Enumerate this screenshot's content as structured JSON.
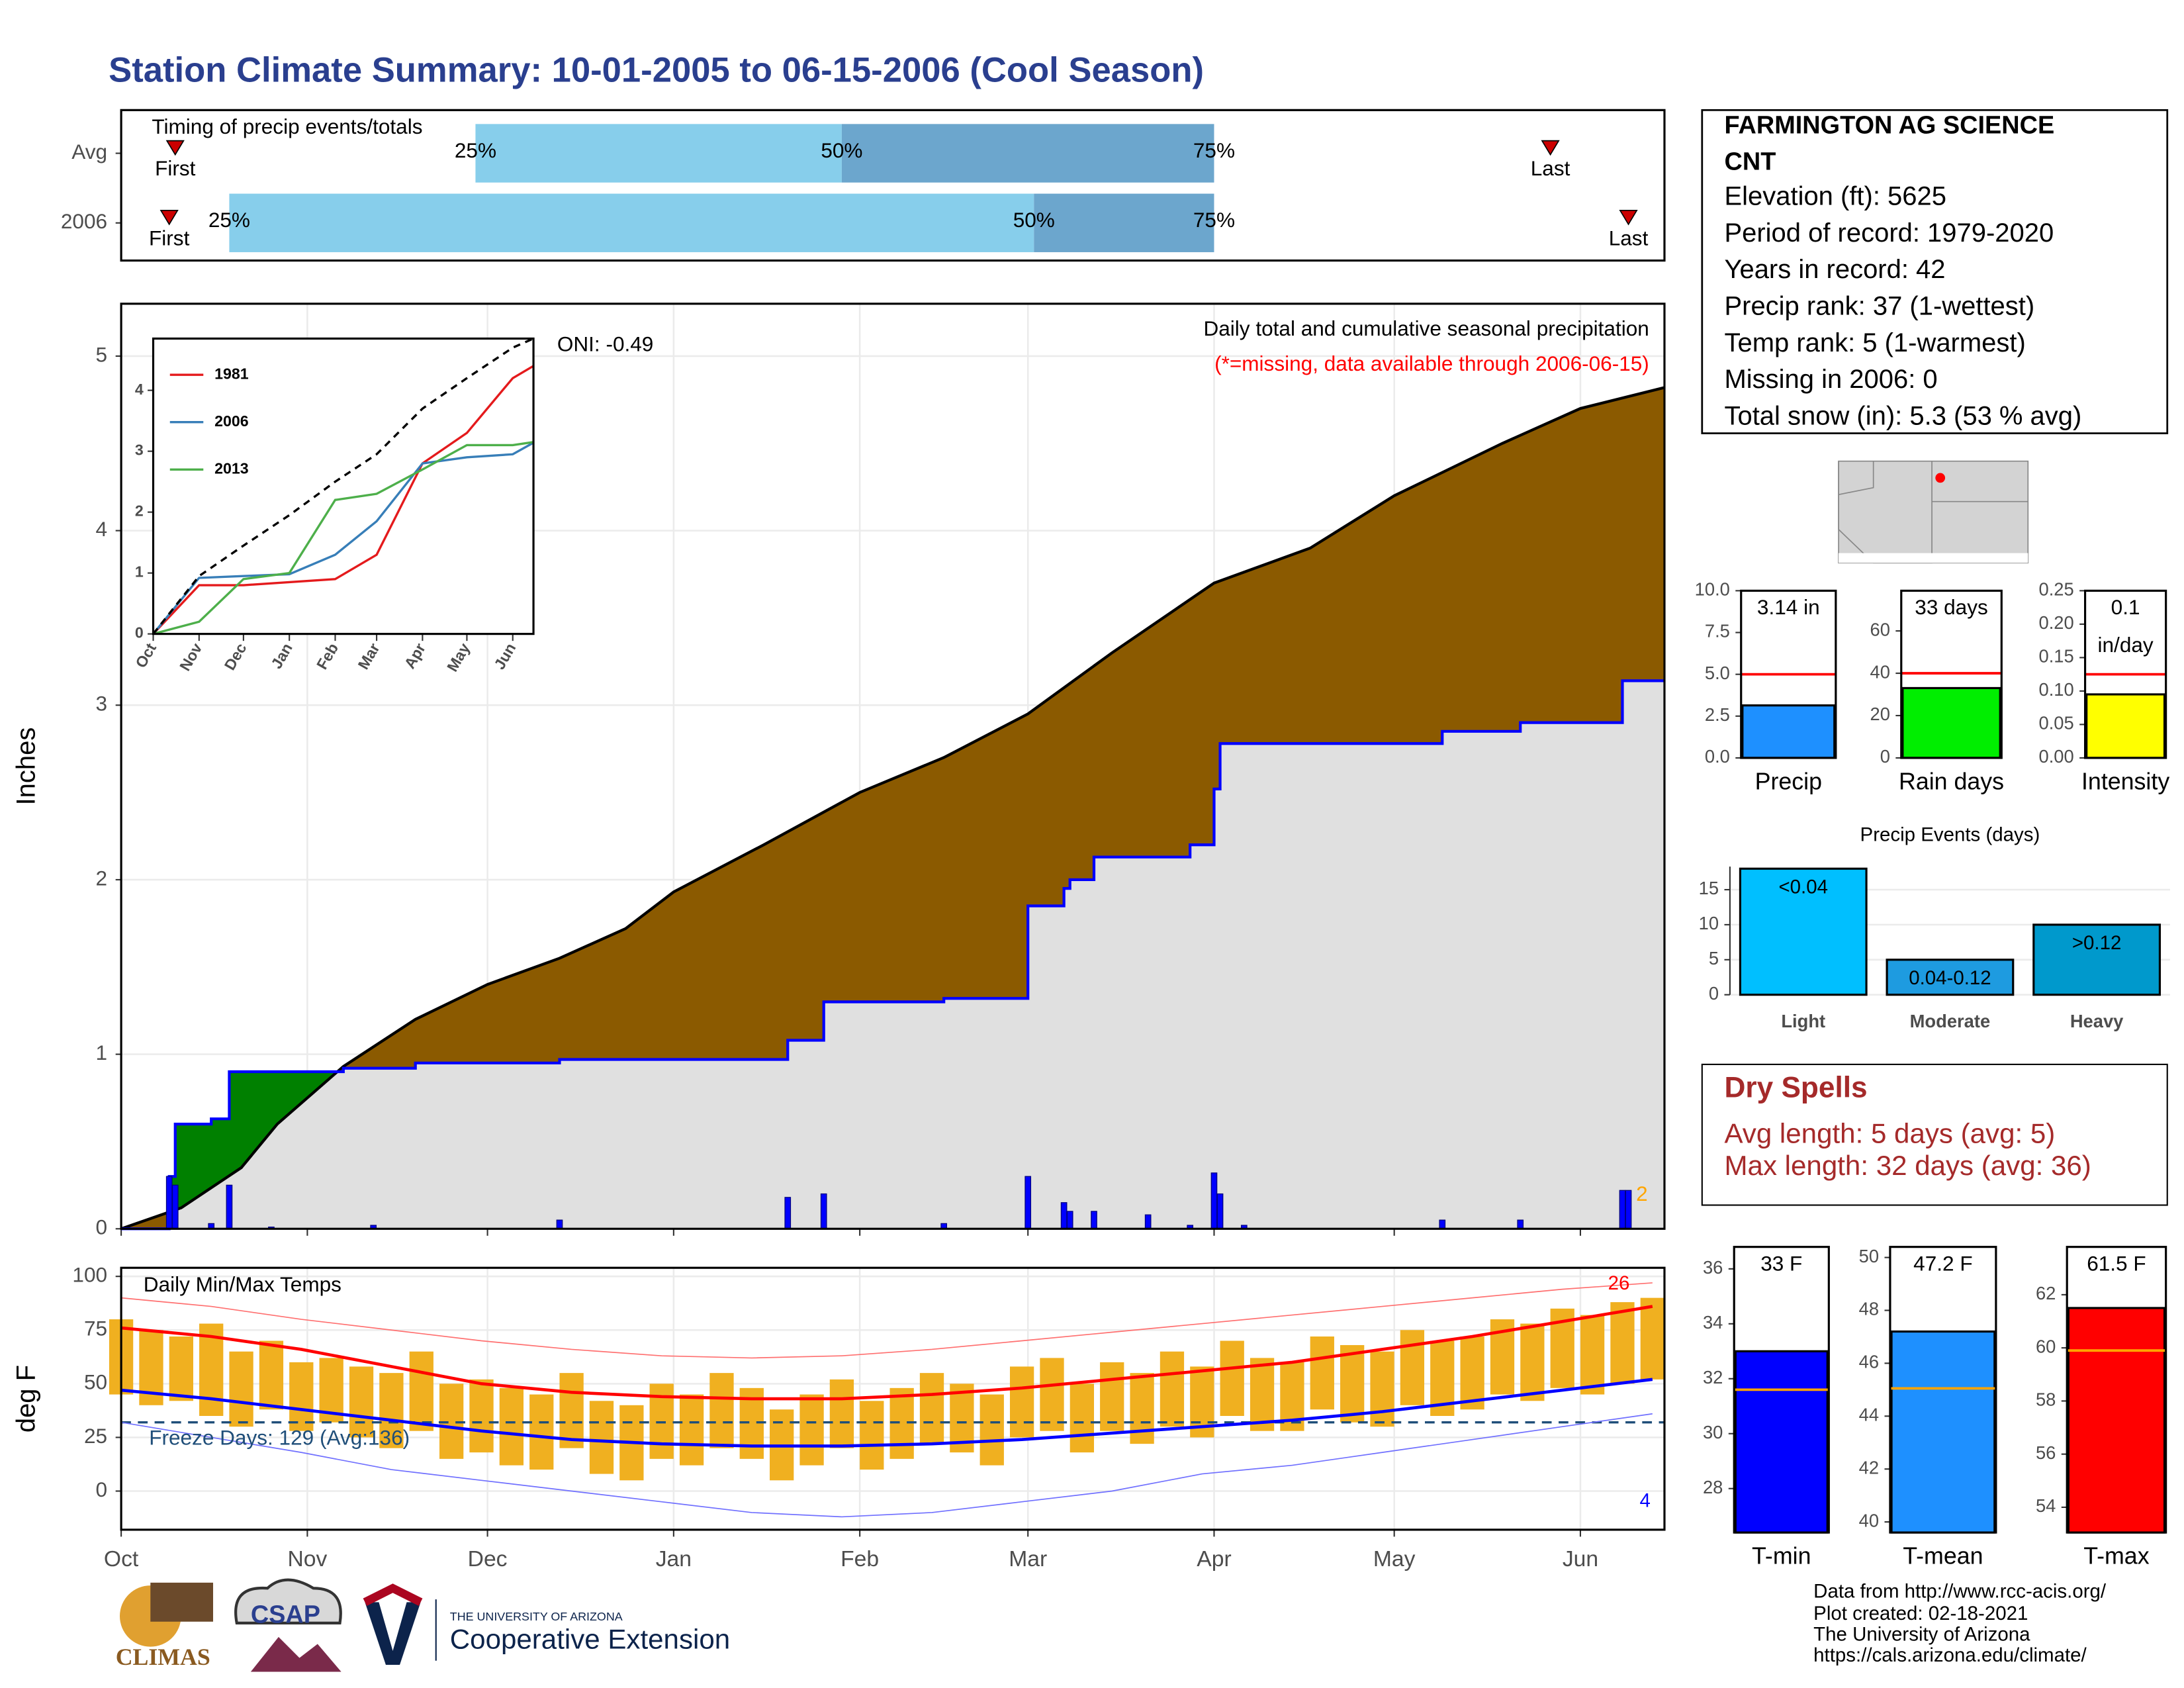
{
  "title": "Station Climate Summary: 10-01-2005 to 06-15-2006 (Cool Season)",
  "station": {
    "name_lines": [
      "FARMINGTON AG SCIENCE",
      "CNT"
    ],
    "lines": [
      "Elevation (ft): 5625",
      "Period of record: 1979-2020",
      "Years in record: 42",
      "Precip rank: 37 (1-wettest)",
      "Temp rank: 5 (1-warmest)",
      "Missing in 2006: 0",
      "Total snow (in): 5.3 (53 % avg)"
    ]
  },
  "dry_spells": {
    "title": "Dry Spells",
    "lines": [
      "Avg length: 5 days (avg: 5)",
      "Max length: 32 days (avg: 36)"
    ]
  },
  "footer": {
    "logos": [
      "CLIMAS",
      "CSAP",
      "THE UNIVERSITY OF ARIZONA",
      "Cooperative Extension"
    ],
    "credits": [
      "Data from http://www.rcc-acis.org/",
      "Plot created: 02-18-2021",
      "The University of Arizona",
      "https://cals.arizona.edu/climate/"
    ]
  },
  "chart_data": [
    {
      "type": "timing",
      "title": "Timing of precip events/totals",
      "xlim": [
        0,
        257
      ],
      "rows": [
        {
          "name": "Avg",
          "first": 9,
          "q25": 59,
          "q50": 120,
          "q75": 182,
          "last": 238
        },
        {
          "name": "2006",
          "first": 8,
          "q25": 18,
          "q50": 152,
          "q75": 182,
          "last": 251
        }
      ],
      "first_label": "First",
      "last_label": "Last",
      "quartile_labels": [
        "25%",
        "50%",
        "75%"
      ],
      "colors": [
        "#87ceeb",
        "#6ca6cd"
      ],
      "marker_color": "#cc0000"
    },
    {
      "type": "area",
      "title": "Daily total and cumulative seasonal precipitation",
      "note": "(*=missing, data available through 2006-06-15)",
      "oni": "ONI: -0.49",
      "count_label": "2",
      "ylabel": "Inches",
      "xlim": [
        0,
        257
      ],
      "ylim": [
        0,
        5.3
      ],
      "yticks": [
        0,
        1,
        2,
        3,
        4,
        5
      ],
      "xticks": [
        0,
        31,
        61,
        92,
        123,
        151,
        182,
        212,
        243
      ],
      "grid": true,
      "series": [
        {
          "color": "#000000",
          "fill": "#8b5a00",
          "x": [
            0,
            10,
            20,
            26,
            37,
            49,
            61,
            73,
            84,
            92,
            107,
            123,
            137,
            151,
            165,
            182,
            198,
            212,
            230,
            243,
            257
          ],
          "values": [
            0,
            0.12,
            0.35,
            0.6,
            0.93,
            1.2,
            1.4,
            1.55,
            1.72,
            1.93,
            2.2,
            2.5,
            2.7,
            2.95,
            3.3,
            3.7,
            3.9,
            4.2,
            4.5,
            4.7,
            4.82
          ]
        },
        {
          "color": "#0000ff",
          "fill": "#e0e0e0",
          "above_fill": "#008000",
          "x": [
            0,
            8,
            8,
            9,
            9,
            15,
            15,
            18,
            18,
            37,
            37,
            49,
            49,
            73,
            73,
            111,
            111,
            117,
            117,
            137,
            137,
            151,
            151,
            157,
            157,
            158,
            158,
            162,
            162,
            178,
            178,
            182,
            182,
            183,
            183,
            220,
            220,
            233,
            233,
            250,
            250,
            257
          ],
          "values": [
            0,
            0,
            0.3,
            0.3,
            0.6,
            0.6,
            0.63,
            0.63,
            0.9,
            0.9,
            0.92,
            0.92,
            0.95,
            0.95,
            0.97,
            0.97,
            1.08,
            1.08,
            1.3,
            1.3,
            1.32,
            1.32,
            1.85,
            1.85,
            1.95,
            1.95,
            2.0,
            2.0,
            2.13,
            2.13,
            2.2,
            2.2,
            2.52,
            2.52,
            2.78,
            2.78,
            2.85,
            2.85,
            2.9,
            2.9,
            3.14,
            3.14
          ]
        }
      ],
      "daily": {
        "color": "#0000ff",
        "x": [
          8,
          9,
          15,
          18,
          25,
          42,
          73,
          111,
          117,
          137,
          151,
          157,
          158,
          162,
          171,
          178,
          182,
          183,
          187,
          220,
          233,
          250,
          251
        ],
        "values": [
          0.3,
          0.25,
          0.03,
          0.25,
          0.01,
          0.02,
          0.05,
          0.18,
          0.2,
          0.03,
          0.3,
          0.15,
          0.1,
          0.1,
          0.08,
          0.02,
          0.32,
          0.2,
          0.02,
          0.05,
          0.05,
          0.22,
          0.22
        ]
      }
    },
    {
      "type": "line",
      "xlim": [
        0,
        257
      ],
      "ylim": [
        0,
        4.85
      ],
      "yticks": [
        0,
        1,
        2,
        3,
        4
      ],
      "xticks": [
        {
          "value": 0,
          "label": "Oct"
        },
        {
          "value": 31,
          "label": "Nov"
        },
        {
          "value": 61,
          "label": "Dec"
        },
        {
          "value": 92,
          "label": "Jan"
        },
        {
          "value": 123,
          "label": "Feb"
        },
        {
          "value": 151,
          "label": "Mar"
        },
        {
          "value": 182,
          "label": "Apr"
        },
        {
          "value": 212,
          "label": "May"
        },
        {
          "value": 243,
          "label": "Jun"
        }
      ],
      "series": [
        {
          "name": "1981",
          "color": "#e41a1c",
          "x": [
            0,
            31,
            61,
            92,
            123,
            151,
            182,
            212,
            243,
            257
          ],
          "values": [
            0,
            0.8,
            0.8,
            0.85,
            0.9,
            1.3,
            2.8,
            3.3,
            4.2,
            4.4
          ]
        },
        {
          "name": "2006",
          "color": "#377eb8",
          "x": [
            0,
            31,
            61,
            92,
            123,
            151,
            182,
            212,
            243,
            257
          ],
          "values": [
            0,
            0.92,
            0.95,
            0.98,
            1.3,
            1.85,
            2.8,
            2.9,
            2.95,
            3.14
          ]
        },
        {
          "name": "2013",
          "color": "#4daf4a",
          "x": [
            0,
            31,
            61,
            92,
            123,
            151,
            182,
            212,
            243,
            257
          ],
          "values": [
            0,
            0.2,
            0.9,
            1.0,
            2.2,
            2.3,
            2.7,
            3.1,
            3.1,
            3.15
          ]
        },
        {
          "color": "#000000",
          "dash": true,
          "x": [
            0,
            31,
            61,
            92,
            123,
            151,
            182,
            212,
            243,
            257
          ],
          "values": [
            0,
            0.95,
            1.45,
            1.95,
            2.5,
            2.95,
            3.7,
            4.2,
            4.7,
            4.85
          ]
        }
      ]
    },
    {
      "type": "range",
      "title": "Daily Min/Max Temps",
      "ylabel": "deg F",
      "freeze_label": "Freeze Days: 129 (Avg:136)",
      "high_count": "26",
      "low_count": "4",
      "xlim": [
        0,
        257
      ],
      "ylim": [
        -18,
        104
      ],
      "yticks": [
        0,
        25,
        50,
        75,
        100
      ],
      "xticks": [
        {
          "value": 0,
          "label": "Oct"
        },
        {
          "value": 31,
          "label": "Nov"
        },
        {
          "value": 61,
          "label": "Dec"
        },
        {
          "value": 92,
          "label": "Jan"
        },
        {
          "value": 123,
          "label": "Feb"
        },
        {
          "value": 151,
          "label": "Mar"
        },
        {
          "value": 182,
          "label": "Apr"
        },
        {
          "value": 212,
          "label": "May"
        },
        {
          "value": 243,
          "label": "Jun"
        }
      ],
      "grid": true,
      "freeze_line": 32,
      "bar_color": "#f0b020",
      "x": [
        0,
        5,
        10,
        15,
        20,
        25,
        30,
        35,
        40,
        45,
        50,
        55,
        60,
        65,
        70,
        75,
        80,
        85,
        90,
        95,
        100,
        105,
        110,
        115,
        120,
        125,
        130,
        135,
        140,
        145,
        150,
        155,
        160,
        165,
        170,
        175,
        180,
        185,
        190,
        195,
        200,
        205,
        210,
        215,
        220,
        225,
        230,
        235,
        240,
        245,
        250,
        255
      ],
      "highs": [
        80,
        75,
        72,
        78,
        65,
        70,
        60,
        62,
        58,
        55,
        65,
        50,
        52,
        48,
        45,
        55,
        42,
        40,
        50,
        45,
        55,
        48,
        38,
        45,
        52,
        42,
        48,
        55,
        50,
        45,
        58,
        62,
        50,
        60,
        55,
        65,
        58,
        70,
        62,
        60,
        72,
        68,
        65,
        75,
        70,
        72,
        80,
        78,
        85,
        82,
        88,
        90
      ],
      "lows": [
        45,
        40,
        42,
        35,
        30,
        38,
        28,
        32,
        25,
        20,
        28,
        15,
        18,
        12,
        10,
        20,
        8,
        5,
        15,
        12,
        20,
        15,
        5,
        12,
        20,
        10,
        15,
        22,
        18,
        12,
        25,
        28,
        18,
        28,
        22,
        30,
        25,
        35,
        28,
        28,
        38,
        32,
        30,
        40,
        35,
        38,
        45,
        42,
        48,
        45,
        50,
        52
      ],
      "avg_x": [
        0,
        15,
        30,
        45,
        60,
        75,
        90,
        105,
        120,
        135,
        150,
        165,
        180,
        195,
        210,
        225,
        240,
        255
      ],
      "avg_max": [
        76,
        72,
        66,
        58,
        50,
        46,
        44,
        43,
        43,
        45,
        48,
        52,
        56,
        60,
        66,
        72,
        79,
        86
      ],
      "avg_min": [
        47,
        43,
        38,
        33,
        28,
        24,
        22,
        21,
        21,
        22,
        24,
        27,
        30,
        33,
        37,
        42,
        47,
        52
      ],
      "record_max": [
        90,
        86,
        80,
        75,
        70,
        66,
        63,
        62,
        63,
        66,
        70,
        74,
        78,
        82,
        86,
        90,
        94,
        97
      ],
      "record_min": [
        32,
        25,
        18,
        10,
        5,
        0,
        -5,
        -10,
        -12,
        -10,
        -5,
        0,
        8,
        12,
        18,
        24,
        30,
        36
      ],
      "colors": {
        "avg_max": "#ff0000",
        "avg_min": "#0000ff",
        "record_max": "#ff7070",
        "record_min": "#7070ff",
        "freeze": "#1f4e79"
      }
    },
    {
      "type": "bar",
      "categories": [
        "Precip"
      ],
      "values": [
        3.14
      ],
      "value_labels": [
        "3.14 in"
      ],
      "color": "#1e90ff",
      "avg": 5.0,
      "avg_color": "#ff0000",
      "ylim": [
        0,
        10
      ],
      "yticks": [
        {
          "value": 0,
          "label": "0.0"
        },
        2.5,
        {
          "value": 5,
          "label": "5.0"
        },
        7.5,
        {
          "value": 10,
          "label": "10.0"
        }
      ]
    },
    {
      "type": "bar",
      "categories": [
        "Rain days"
      ],
      "values": [
        33
      ],
      "value_labels": [
        "33 days"
      ],
      "color": "#00ee00",
      "avg": 40,
      "avg_color": "#ff0000",
      "ylim": [
        0,
        79
      ],
      "yticks": [
        0,
        20,
        40,
        60
      ]
    },
    {
      "type": "bar",
      "categories": [
        "Intensity"
      ],
      "values": [
        0.095
      ],
      "value_labels": [
        "0.1"
      ],
      "unit_label": "in/day",
      "color": "#ffff00",
      "avg": 0.125,
      "avg_color": "#ff0000",
      "ylim": [
        0,
        0.25
      ],
      "yticks": [
        {
          "value": 0,
          "label": "0.00"
        },
        0.05,
        {
          "value": 0.1,
          "label": "0.10"
        },
        0.15,
        {
          "value": 0.2,
          "label": "0.20"
        },
        0.25
      ]
    },
    {
      "type": "bar",
      "title": "Precip Events (days)",
      "categories": [
        "Light",
        "Moderate",
        "Heavy"
      ],
      "values": [
        18,
        5,
        10
      ],
      "bar_labels": [
        "<0.04",
        "0.04-0.12",
        ">0.12"
      ],
      "colors": [
        "#00bfff",
        "#1e9be0",
        "#0099cc"
      ],
      "ylim": [
        0,
        18.3
      ],
      "yticks": [
        0,
        5,
        10,
        15
      ],
      "grid": true
    },
    {
      "type": "bar",
      "categories": [
        "T-min"
      ],
      "values": [
        33
      ],
      "value_labels": [
        "33 F"
      ],
      "color": "#0000ff",
      "avg": 31.6,
      "avg_color": "#ffa500",
      "ylim": [
        26.4,
        36.8
      ],
      "yticks": [
        28,
        30,
        32,
        34,
        36
      ]
    },
    {
      "type": "bar",
      "categories": [
        "T-mean"
      ],
      "values": [
        47.2
      ],
      "value_labels": [
        "47.2 F"
      ],
      "color": "#1e90ff",
      "avg": 45.05,
      "avg_color": "#ffa500",
      "ylim": [
        39.6,
        50.4
      ],
      "yticks": [
        40,
        42,
        44,
        46,
        48,
        50
      ]
    },
    {
      "type": "bar",
      "categories": [
        "T-max"
      ],
      "values": [
        61.5
      ],
      "value_labels": [
        "61.5 F"
      ],
      "color": "#ff0000",
      "avg": 59.9,
      "avg_color": "#ffa500",
      "ylim": [
        53.05,
        63.8
      ],
      "yticks": [
        54,
        56,
        58,
        60,
        62
      ]
    }
  ]
}
